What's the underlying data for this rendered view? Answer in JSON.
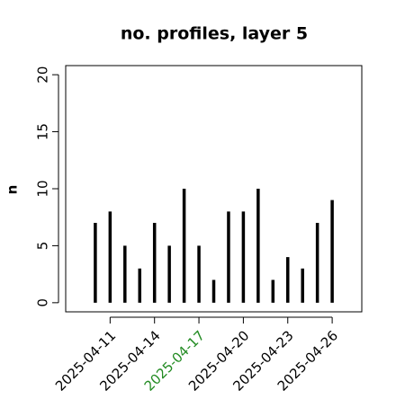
{
  "chart_data": {
    "type": "lollipop-h",
    "title": "no. profiles, layer 5",
    "y_label": "n",
    "x": [
      "2025-04-10",
      "2025-04-11",
      "2025-04-12",
      "2025-04-13",
      "2025-04-14",
      "2025-04-15",
      "2025-04-16",
      "2025-04-17",
      "2025-04-18",
      "2025-04-19",
      "2025-04-20",
      "2025-04-21",
      "2025-04-22",
      "2025-04-23",
      "2025-04-24",
      "2025-04-25",
      "2025-04-26"
    ],
    "values": [
      7,
      8,
      5,
      3,
      7,
      5,
      10,
      5,
      2,
      8,
      8,
      10,
      2,
      4,
      3,
      7,
      9
    ],
    "color": "#000000",
    "xlim": [
      "2025-04-08",
      "2025-04-28"
    ],
    "xticks": [
      "2025-04-11",
      "2025-04-14",
      "2025-04-17",
      "2025-04-20",
      "2025-04-23",
      "2025-04-26"
    ],
    "xtick_label_colors": [
      "#000000",
      "#000000",
      "#228b22",
      "#000000",
      "#000000",
      "#000000"
    ],
    "ylim": [
      -0.8,
      20.8
    ],
    "yticks": [
      0,
      5,
      10,
      15,
      20
    ]
  }
}
